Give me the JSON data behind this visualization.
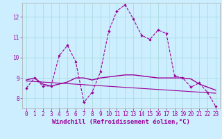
{
  "xlabel": "Windchill (Refroidissement éolien,°C)",
  "background_color": "#cceeff",
  "grid_color": "#aadddd",
  "line_color": "#990099",
  "xlim": [
    -0.5,
    23.5
  ],
  "ylim": [
    7.5,
    12.7
  ],
  "yticks": [
    8,
    9,
    10,
    11,
    12
  ],
  "xticks": [
    0,
    1,
    2,
    3,
    4,
    5,
    6,
    7,
    8,
    9,
    10,
    11,
    12,
    13,
    14,
    15,
    16,
    17,
    18,
    19,
    20,
    21,
    22,
    23
  ],
  "series1_x": [
    0,
    1,
    2,
    3,
    4,
    5,
    6,
    7,
    8,
    9,
    10,
    11,
    12,
    13,
    14,
    15,
    16,
    17,
    18,
    19,
    20,
    21,
    22,
    23
  ],
  "series1_y": [
    8.5,
    9.0,
    8.6,
    8.6,
    10.1,
    10.6,
    9.8,
    7.8,
    8.3,
    9.3,
    11.3,
    12.3,
    12.6,
    11.9,
    11.1,
    10.9,
    11.35,
    11.2,
    9.1,
    9.0,
    8.55,
    8.75,
    8.3,
    7.6
  ],
  "series2_x": [
    0,
    1,
    2,
    3,
    4,
    5,
    6,
    7,
    8,
    9,
    10,
    11,
    12,
    13,
    14,
    15,
    16,
    17,
    18,
    19,
    20,
    21,
    22,
    23
  ],
  "series2_y": [
    8.9,
    9.0,
    8.7,
    8.6,
    8.7,
    8.8,
    9.0,
    9.0,
    8.9,
    9.0,
    9.05,
    9.1,
    9.15,
    9.15,
    9.1,
    9.05,
    9.0,
    9.0,
    9.0,
    9.0,
    8.95,
    8.7,
    8.55,
    8.4
  ],
  "series3_x": [
    0,
    23
  ],
  "series3_y": [
    8.85,
    8.25
  ],
  "font_color": "#990099",
  "tick_fontsize": 5.5,
  "label_fontsize": 6.5
}
